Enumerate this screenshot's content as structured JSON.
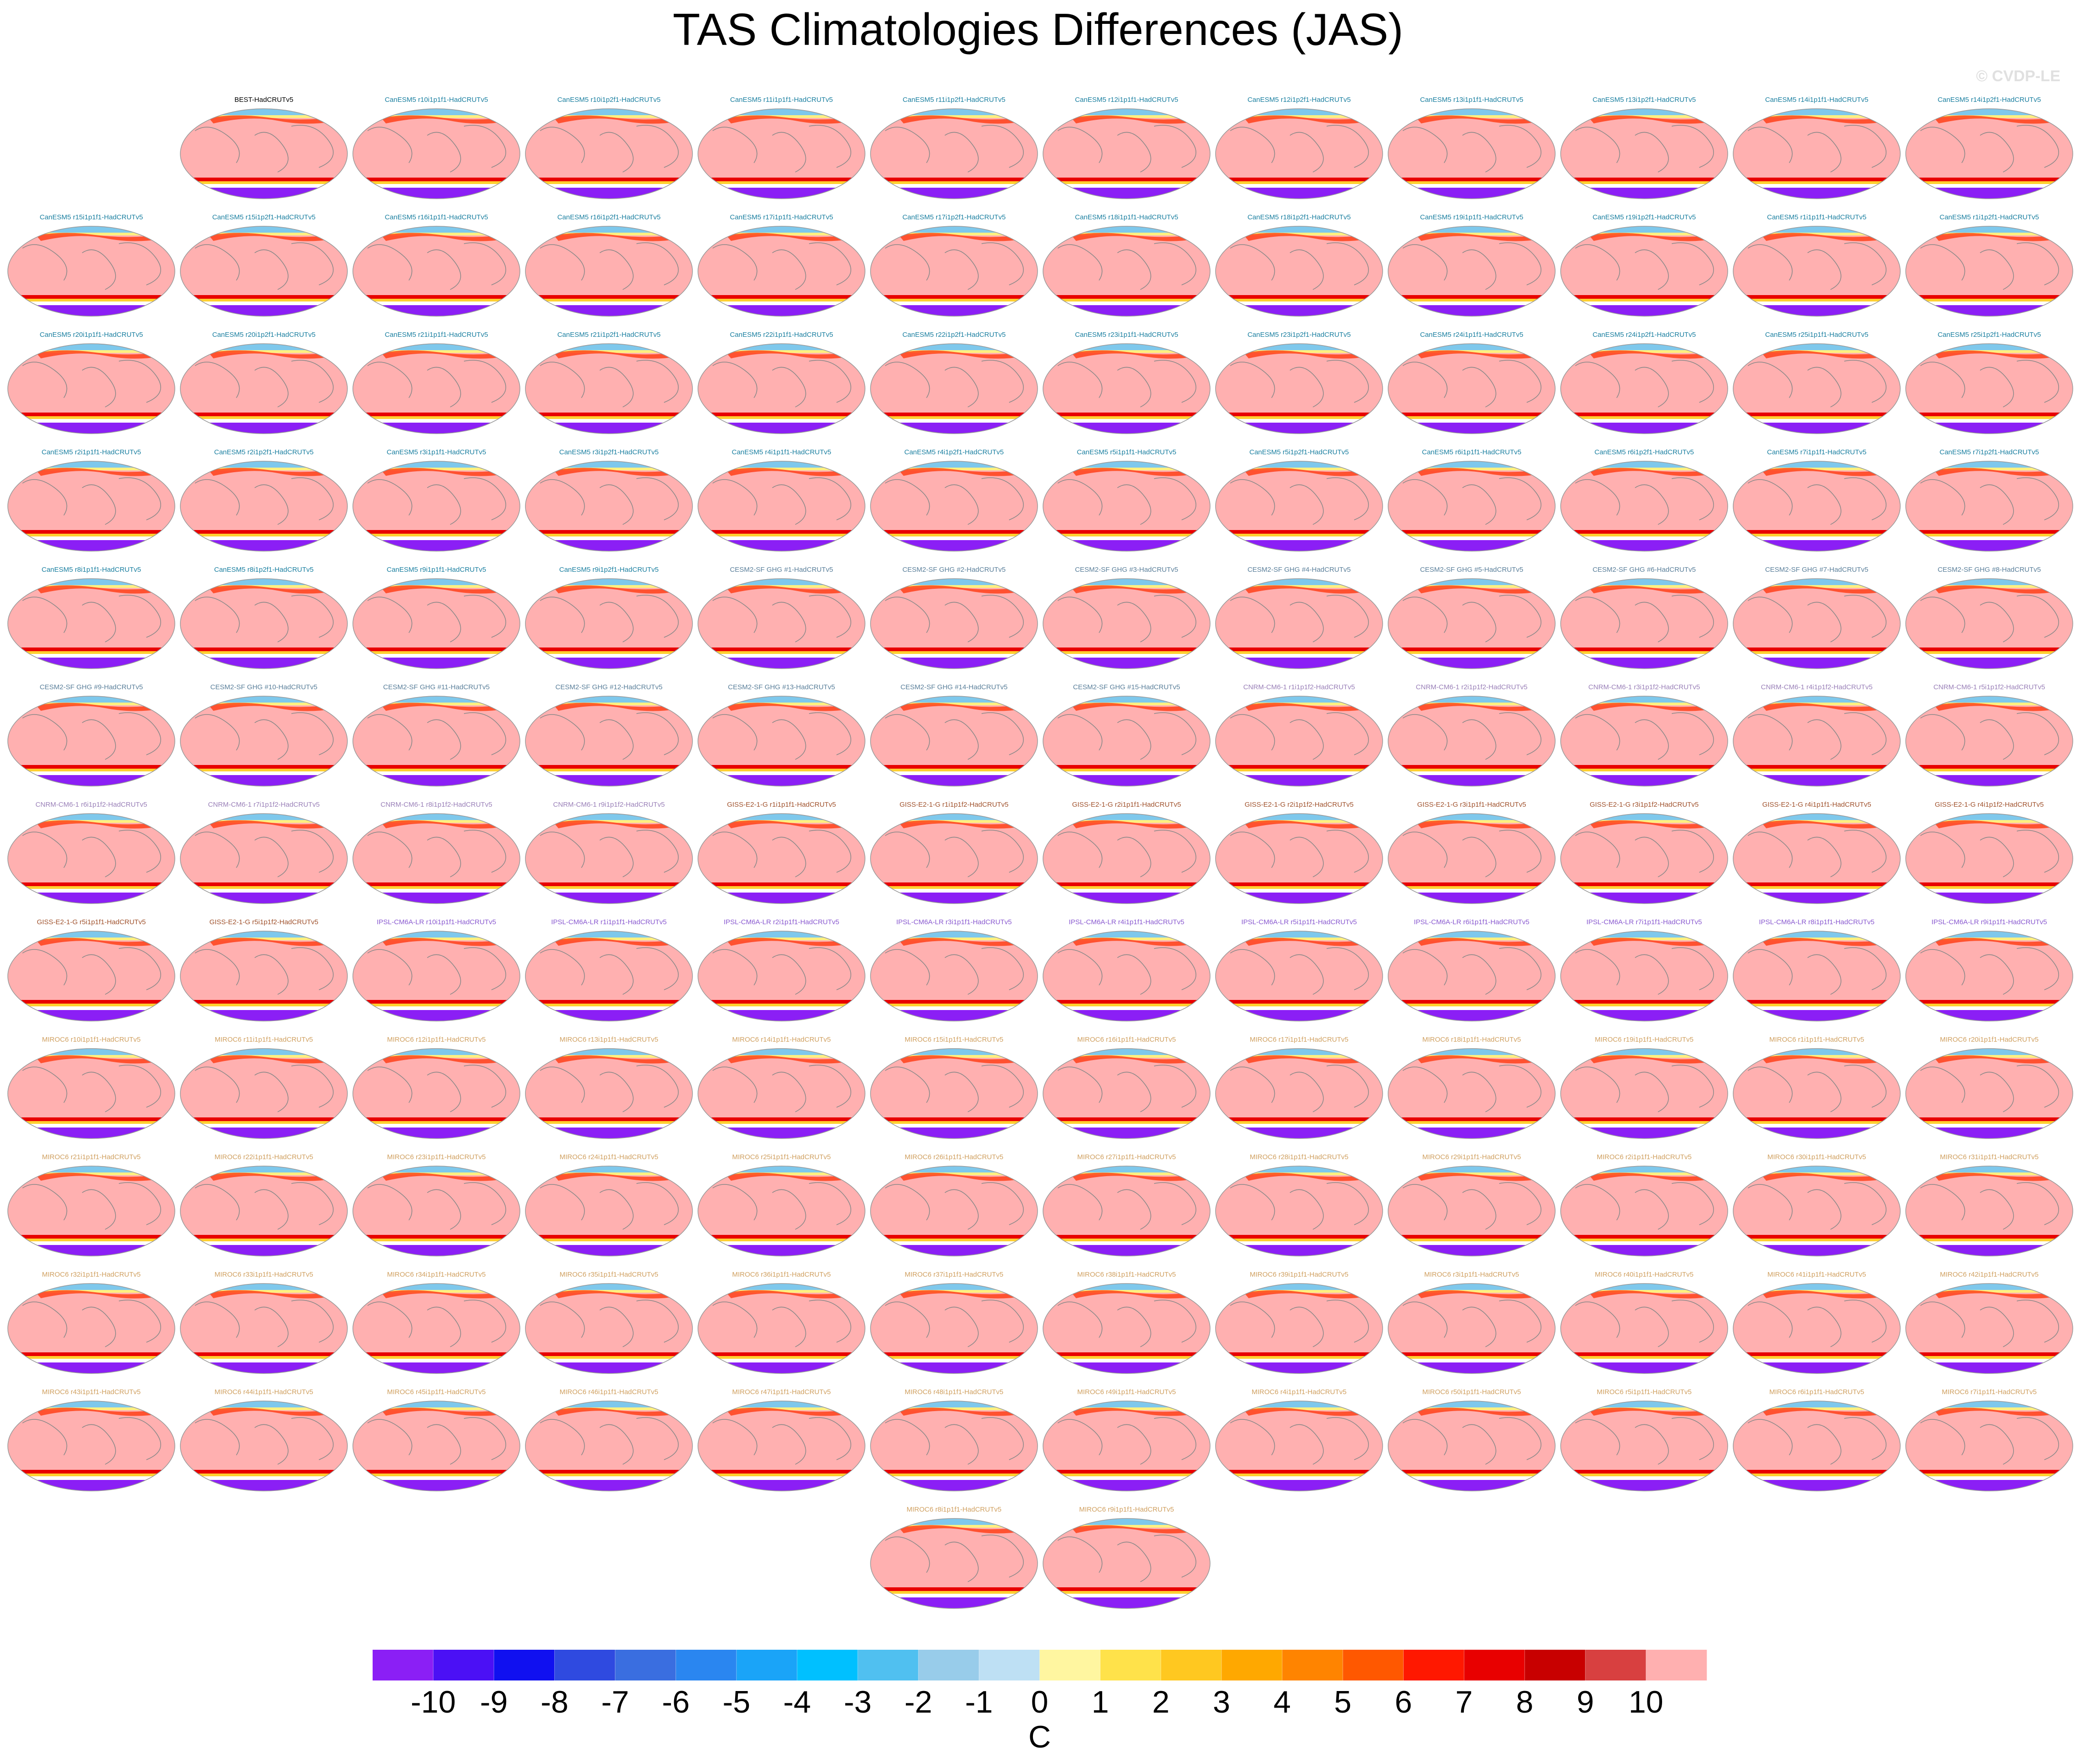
{
  "chart_data": {
    "type": "map-panels",
    "title": "TAS Climatologies Differences (JAS)",
    "watermark": "© CVDP-LE",
    "columns": 12,
    "groups": [
      {
        "color": "#000000",
        "labels": [
          "BEST-HadCRUTv5"
        ]
      },
      {
        "color": "#1a7fa0",
        "labels": [
          "CanESM5 r10i1p1f1-HadCRUTv5",
          "CanESM5 r10i1p2f1-HadCRUTv5",
          "CanESM5 r11i1p1f1-HadCRUTv5",
          "CanESM5 r11i1p2f1-HadCRUTv5",
          "CanESM5 r12i1p1f1-HadCRUTv5",
          "CanESM5 r12i1p2f1-HadCRUTv5",
          "CanESM5 r13i1p1f1-HadCRUTv5",
          "CanESM5 r13i1p2f1-HadCRUTv5",
          "CanESM5 r14i1p1f1-HadCRUTv5",
          "CanESM5 r14i1p2f1-HadCRUTv5",
          "CanESM5 r15i1p1f1-HadCRUTv5",
          "CanESM5 r15i1p2f1-HadCRUTv5",
          "CanESM5 r16i1p1f1-HadCRUTv5",
          "CanESM5 r16i1p2f1-HadCRUTv5",
          "CanESM5 r17i1p1f1-HadCRUTv5",
          "CanESM5 r17i1p2f1-HadCRUTv5",
          "CanESM5 r18i1p1f1-HadCRUTv5",
          "CanESM5 r18i1p2f1-HadCRUTv5",
          "CanESM5 r19i1p1f1-HadCRUTv5",
          "CanESM5 r19i1p2f1-HadCRUTv5",
          "CanESM5 r1i1p1f1-HadCRUTv5",
          "CanESM5 r1i1p2f1-HadCRUTv5",
          "CanESM5 r20i1p1f1-HadCRUTv5",
          "CanESM5 r20i1p2f1-HadCRUTv5",
          "CanESM5 r21i1p1f1-HadCRUTv5",
          "CanESM5 r21i1p2f1-HadCRUTv5",
          "CanESM5 r22i1p1f1-HadCRUTv5",
          "CanESM5 r22i1p2f1-HadCRUTv5",
          "CanESM5 r23i1p1f1-HadCRUTv5",
          "CanESM5 r23i1p2f1-HadCRUTv5",
          "CanESM5 r24i1p1f1-HadCRUTv5",
          "CanESM5 r24i1p2f1-HadCRUTv5",
          "CanESM5 r25i1p1f1-HadCRUTv5",
          "CanESM5 r25i1p2f1-HadCRUTv5",
          "CanESM5 r2i1p1f1-HadCRUTv5",
          "CanESM5 r2i1p2f1-HadCRUTv5",
          "CanESM5 r3i1p1f1-HadCRUTv5",
          "CanESM5 r3i1p2f1-HadCRUTv5",
          "CanESM5 r4i1p1f1-HadCRUTv5",
          "CanESM5 r4i1p2f1-HadCRUTv5",
          "CanESM5 r5i1p1f1-HadCRUTv5",
          "CanESM5 r5i1p2f1-HadCRUTv5",
          "CanESM5 r6i1p1f1-HadCRUTv5",
          "CanESM5 r6i1p2f1-HadCRUTv5",
          "CanESM5 r7i1p1f1-HadCRUTv5",
          "CanESM5 r7i1p2f1-HadCRUTv5",
          "CanESM5 r8i1p1f1-HadCRUTv5",
          "CanESM5 r8i1p2f1-HadCRUTv5",
          "CanESM5 r9i1p1f1-HadCRUTv5",
          "CanESM5 r9i1p2f1-HadCRUTv5"
        ]
      },
      {
        "color": "#5a7f9a",
        "labels": [
          "CESM2-SF GHG #1-HadCRUTv5",
          "CESM2-SF GHG #2-HadCRUTv5",
          "CESM2-SF GHG #3-HadCRUTv5",
          "CESM2-SF GHG #4-HadCRUTv5",
          "CESM2-SF GHG #5-HadCRUTv5",
          "CESM2-SF GHG #6-HadCRUTv5",
          "CESM2-SF GHG #7-HadCRUTv5",
          "CESM2-SF GHG #8-HadCRUTv5",
          "CESM2-SF GHG #9-HadCRUTv5",
          "CESM2-SF GHG #10-HadCRUTv5",
          "CESM2-SF GHG #11-HadCRUTv5",
          "CESM2-SF GHG #12-HadCRUTv5",
          "CESM2-SF GHG #13-HadCRUTv5",
          "CESM2-SF GHG #14-HadCRUTv5",
          "CESM2-SF GHG #15-HadCRUTv5"
        ]
      },
      {
        "color": "#9a80b8",
        "labels": [
          "CNRM-CM6-1 r1i1p1f2-HadCRUTv5",
          "CNRM-CM6-1 r2i1p1f2-HadCRUTv5",
          "CNRM-CM6-1 r3i1p1f2-HadCRUTv5",
          "CNRM-CM6-1 r4i1p1f2-HadCRUTv5",
          "CNRM-CM6-1 r5i1p1f2-HadCRUTv5",
          "CNRM-CM6-1 r6i1p1f2-HadCRUTv5",
          "CNRM-CM6-1 r7i1p1f2-HadCRUTv5",
          "CNRM-CM6-1 r8i1p1f2-HadCRUTv5",
          "CNRM-CM6-1 r9i1p1f2-HadCRUTv5"
        ]
      },
      {
        "color": "#a0522d",
        "labels": [
          "GISS-E2-1-G r1i1p1f1-HadCRUTv5",
          "GISS-E2-1-G r1i1p1f2-HadCRUTv5",
          "GISS-E2-1-G r2i1p1f1-HadCRUTv5",
          "GISS-E2-1-G r2i1p1f2-HadCRUTv5",
          "GISS-E2-1-G r3i1p1f1-HadCRUTv5",
          "GISS-E2-1-G r3i1p1f2-HadCRUTv5",
          "GISS-E2-1-G r4i1p1f1-HadCRUTv5",
          "GISS-E2-1-G r4i1p1f2-HadCRUTv5",
          "GISS-E2-1-G r5i1p1f1-HadCRUTv5",
          "GISS-E2-1-G r5i1p1f2-HadCRUTv5"
        ]
      },
      {
        "color": "#8a5ad0",
        "labels": [
          "IPSL-CM6A-LR r10i1p1f1-HadCRUTv5",
          "IPSL-CM6A-LR r1i1p1f1-HadCRUTv5",
          "IPSL-CM6A-LR r2i1p1f1-HadCRUTv5",
          "IPSL-CM6A-LR r3i1p1f1-HadCRUTv5",
          "IPSL-CM6A-LR r4i1p1f1-HadCRUTv5",
          "IPSL-CM6A-LR r5i1p1f1-HadCRUTv5",
          "IPSL-CM6A-LR r6i1p1f1-HadCRUTv5",
          "IPSL-CM6A-LR r7i1p1f1-HadCRUTv5",
          "IPSL-CM6A-LR r8i1p1f1-HadCRUTv5",
          "IPSL-CM6A-LR r9i1p1f1-HadCRUTv5"
        ]
      },
      {
        "color": "#d0a060",
        "labels": [
          "MIROC6 r10i1p1f1-HadCRUTv5",
          "MIROC6 r11i1p1f1-HadCRUTv5",
          "MIROC6 r12i1p1f1-HadCRUTv5",
          "MIROC6 r13i1p1f1-HadCRUTv5",
          "MIROC6 r14i1p1f1-HadCRUTv5",
          "MIROC6 r15i1p1f1-HadCRUTv5",
          "MIROC6 r16i1p1f1-HadCRUTv5",
          "MIROC6 r17i1p1f1-HadCRUTv5",
          "MIROC6 r18i1p1f1-HadCRUTv5",
          "MIROC6 r19i1p1f1-HadCRUTv5",
          "MIROC6 r1i1p1f1-HadCRUTv5",
          "MIROC6 r20i1p1f1-HadCRUTv5",
          "MIROC6 r21i1p1f1-HadCRUTv5",
          "MIROC6 r22i1p1f1-HadCRUTv5",
          "MIROC6 r23i1p1f1-HadCRUTv5",
          "MIROC6 r24i1p1f1-HadCRUTv5",
          "MIROC6 r25i1p1f1-HadCRUTv5",
          "MIROC6 r26i1p1f1-HadCRUTv5",
          "MIROC6 r27i1p1f1-HadCRUTv5",
          "MIROC6 r28i1p1f1-HadCRUTv5",
          "MIROC6 r29i1p1f1-HadCRUTv5",
          "MIROC6 r2i1p1f1-HadCRUTv5",
          "MIROC6 r30i1p1f1-HadCRUTv5",
          "MIROC6 r31i1p1f1-HadCRUTv5",
          "MIROC6 r32i1p1f1-HadCRUTv5",
          "MIROC6 r33i1p1f1-HadCRUTv5",
          "MIROC6 r34i1p1f1-HadCRUTv5",
          "MIROC6 r35i1p1f1-HadCRUTv5",
          "MIROC6 r36i1p1f1-HadCRUTv5",
          "MIROC6 r37i1p1f1-HadCRUTv5",
          "MIROC6 r38i1p1f1-HadCRUTv5",
          "MIROC6 r39i1p1f1-HadCRUTv5",
          "MIROC6 r3i1p1f1-HadCRUTv5",
          "MIROC6 r40i1p1f1-HadCRUTv5",
          "MIROC6 r41i1p1f1-HadCRUTv5",
          "MIROC6 r42i1p1f1-HadCRUTv5",
          "MIROC6 r43i1p1f1-HadCRUTv5",
          "MIROC6 r44i1p1f1-HadCRUTv5",
          "MIROC6 r45i1p1f1-HadCRUTv5",
          "MIROC6 r46i1p1f1-HadCRUTv5",
          "MIROC6 r47i1p1f1-HadCRUTv5",
          "MIROC6 r48i1p1f1-HadCRUTv5",
          "MIROC6 r49i1p1f1-HadCRUTv5",
          "MIROC6 r4i1p1f1-HadCRUTv5",
          "MIROC6 r50i1p1f1-HadCRUTv5",
          "MIROC6 r5i1p1f1-HadCRUTv5",
          "MIROC6 r6i1p1f1-HadCRUTv5",
          "MIROC6 r7i1p1f1-HadCRUTv5",
          "MIROC6 r8i1p1f1-HadCRUTv5",
          "MIROC6 r9i1p1f1-HadCRUTv5"
        ]
      }
    ],
    "colorbar": {
      "levels": [
        -10,
        -9,
        -8,
        -7,
        -6,
        -5,
        -4,
        -3,
        -2,
        -1,
        0,
        1,
        2,
        3,
        4,
        5,
        6,
        7,
        8,
        9,
        10
      ],
      "colors": [
        "#8b1ff5",
        "#4b10f5",
        "#1010f0",
        "#2f4ae0",
        "#3a6ee0",
        "#2a86f0",
        "#1aa4f8",
        "#00c0ff",
        "#50c0f0",
        "#98ccea",
        "#bee0f4",
        "#fff6a0",
        "#ffe24a",
        "#ffc820",
        "#ffa800",
        "#ff8400",
        "#ff5800",
        "#ff1800",
        "#e80000",
        "#c80000",
        "#d84040",
        "#ffb0b0"
      ],
      "unit": "C"
    }
  }
}
